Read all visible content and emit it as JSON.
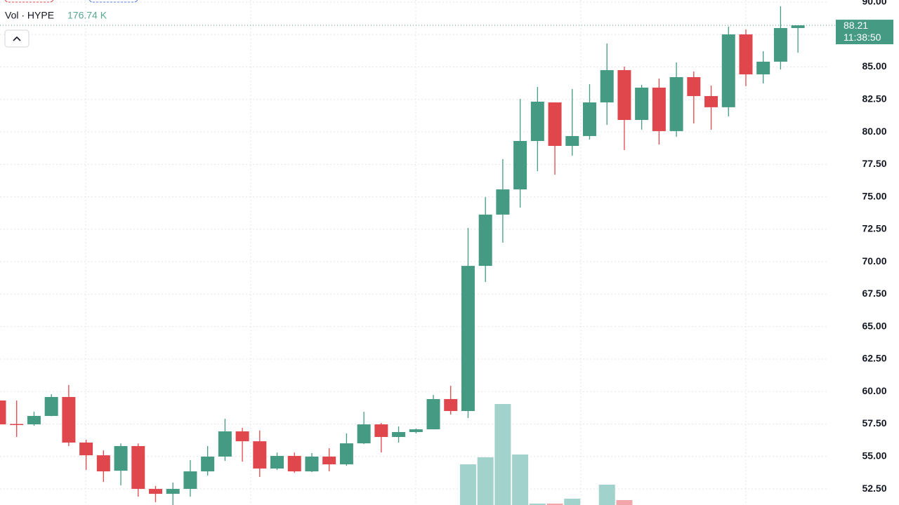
{
  "chart_data": {
    "type": "candlestick",
    "legend_label": "Vol · HYPE",
    "legend_value": "176.74 K",
    "last_price": 88.21,
    "last_time": "11:38:50",
    "open": [
      59.31,
      57.5,
      57.47,
      58.12,
      59.58,
      56.07,
      55.09,
      53.9,
      55.8,
      52.5,
      52.12,
      52.5,
      53.85,
      54.99,
      56.93,
      56.17,
      54.07,
      55.04,
      53.85,
      54.99,
      54.39,
      56.01,
      57.47,
      56.5,
      56.88,
      57.09,
      59.42,
      58.5,
      69.68,
      73.63,
      75.57,
      79.3,
      82.27,
      78.92,
      79.68,
      82.27,
      84.76,
      80.92,
      83.41,
      80.06,
      84.22,
      82.76,
      81.9,
      87.51,
      84.43,
      85.41,
      88.0
    ],
    "high": [
      59.31,
      59.31,
      58.44,
      59.79,
      60.5,
      56.28,
      55.47,
      56.0,
      56.0,
      52.72,
      52.99,
      54.72,
      55.8,
      57.9,
      57.2,
      57.0,
      55.3,
      55.3,
      55.26,
      55.63,
      56.77,
      58.44,
      57.58,
      57.31,
      57.15,
      59.74,
      60.44,
      72.6,
      74.98,
      77.9,
      82.54,
      83.46,
      82.27,
      83.3,
      83.68,
      86.81,
      85.03,
      83.62,
      84.11,
      85.35,
      84.65,
      83.57,
      88.11,
      87.89,
      86.22,
      89.68,
      88.21
    ],
    "low": [
      57.4,
      56.5,
      57.37,
      58.1,
      55.8,
      53.96,
      53.04,
      52.77,
      51.9,
      51.47,
      51.26,
      51.9,
      53.53,
      54.66,
      54.6,
      53.42,
      53.96,
      53.74,
      53.8,
      53.85,
      54.28,
      55.96,
      55.31,
      56.07,
      56.77,
      57.09,
      58.23,
      57.96,
      68.44,
      71.47,
      74.17,
      76.98,
      76.71,
      78.17,
      79.41,
      80.54,
      78.6,
      80.17,
      79.03,
      79.63,
      80.65,
      80.17,
      81.19,
      83.52,
      83.73,
      84.81,
      86.1
    ],
    "close": [
      57.47,
      57.45,
      58.12,
      59.58,
      56.07,
      55.09,
      53.85,
      55.8,
      52.5,
      52.12,
      52.5,
      53.85,
      54.99,
      56.93,
      56.17,
      54.07,
      55.04,
      53.85,
      54.99,
      54.39,
      56.01,
      57.47,
      56.5,
      56.88,
      57.09,
      59.42,
      58.5,
      69.68,
      73.63,
      75.57,
      79.3,
      82.33,
      78.92,
      79.68,
      82.27,
      84.76,
      80.92,
      83.41,
      80.06,
      84.22,
      82.76,
      81.9,
      87.51,
      84.43,
      85.41,
      88.0,
      88.21
    ],
    "volume": [
      null,
      null,
      null,
      null,
      null,
      null,
      null,
      null,
      null,
      null,
      null,
      null,
      null,
      null,
      null,
      null,
      null,
      null,
      null,
      null,
      null,
      null,
      null,
      null,
      null,
      null,
      null,
      58,
      68,
      144,
      72,
      2,
      2,
      9,
      null,
      29,
      7,
      null,
      null,
      null,
      null,
      null,
      null,
      null,
      null,
      null,
      null
    ],
    "volume_ylim": [
      0,
      300
    ],
    "up_color": "#459a83",
    "down_color": "#e0474c",
    "up_volume_color": "#a1d3cc",
    "down_volume_color": "#f3a6aa",
    "ylim": [
      51.26,
      90.16
    ],
    "yticks": [
      {
        "value": 52.5,
        "label": "52.50"
      },
      {
        "value": 55,
        "label": "55.00"
      },
      {
        "value": 57.5,
        "label": "57.50"
      },
      {
        "value": 60,
        "label": "60.00"
      },
      {
        "value": 62.5,
        "label": "62.50"
      },
      {
        "value": 65,
        "label": "65.00"
      },
      {
        "value": 67.5,
        "label": "67.50"
      },
      {
        "value": 70,
        "label": "70.00"
      },
      {
        "value": 72.5,
        "label": "72.50"
      },
      {
        "value": 75,
        "label": "75.00"
      },
      {
        "value": 77.5,
        "label": "77.50"
      },
      {
        "value": 80,
        "label": "80.00"
      },
      {
        "value": 82.5,
        "label": "82.50"
      },
      {
        "value": 85,
        "label": "85.00"
      },
      {
        "value": 87.5,
        "label": "87.50"
      },
      {
        "value": 90,
        "label": "90.00"
      }
    ],
    "grid": true
  }
}
